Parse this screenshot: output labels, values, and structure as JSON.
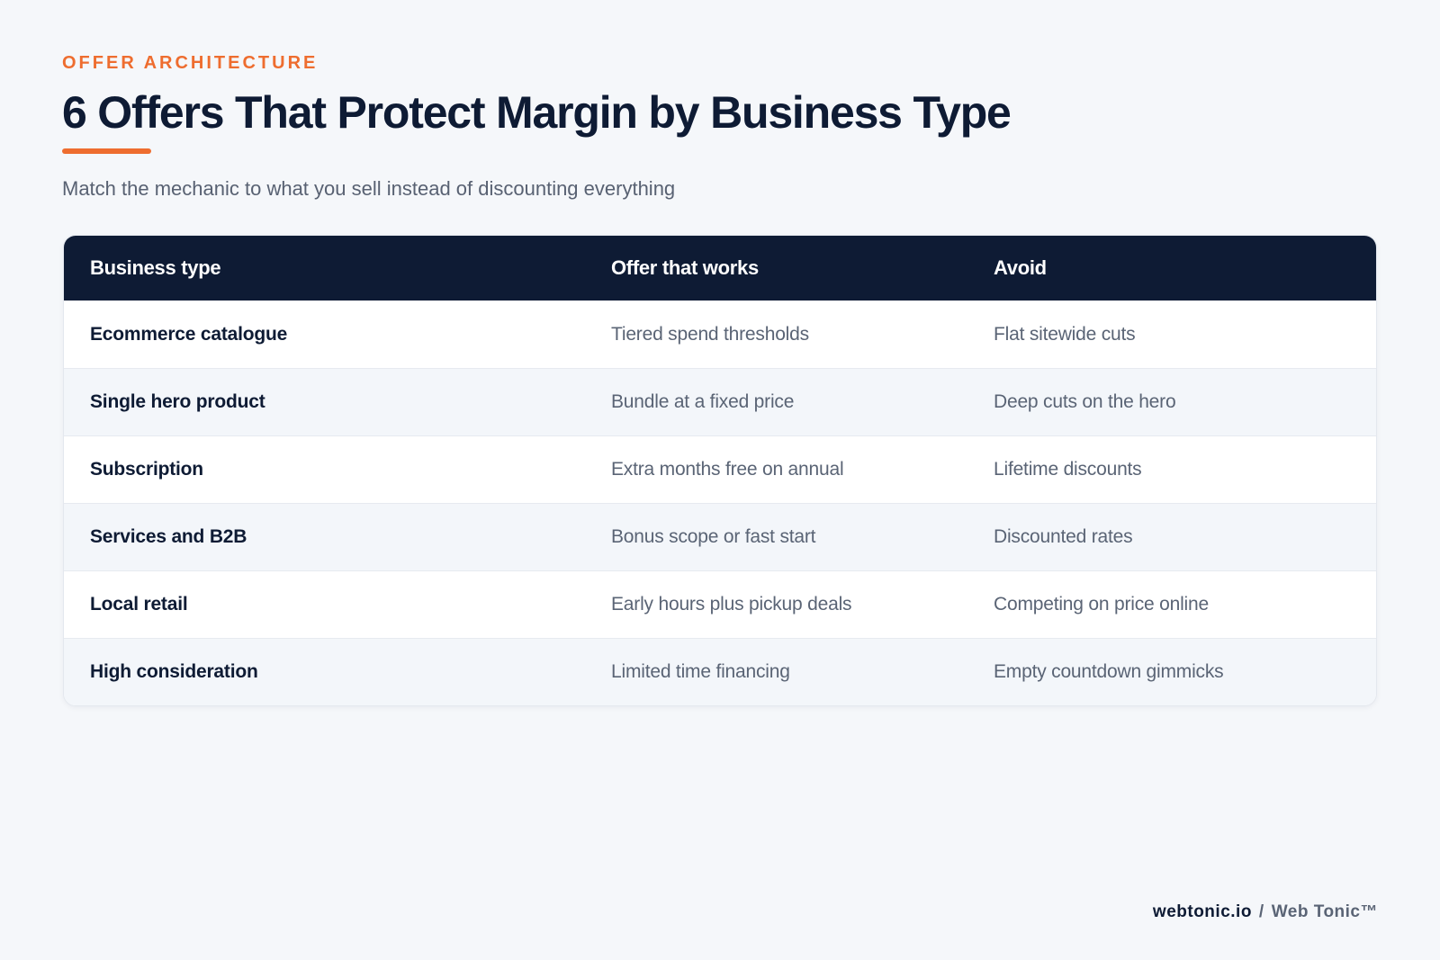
{
  "header": {
    "eyebrow": "OFFER ARCHITECTURE",
    "title": "6 Offers That Protect Margin by Business Type",
    "subtitle": "Match the mechanic to what you sell instead of discounting everything"
  },
  "table": {
    "columns": [
      "Business type",
      "Offer that works",
      "Avoid"
    ],
    "rows": [
      {
        "business_type": "Ecommerce catalogue",
        "offer": "Tiered spend thresholds",
        "avoid": "Flat sitewide cuts"
      },
      {
        "business_type": "Single hero product",
        "offer": "Bundle at a fixed price",
        "avoid": "Deep cuts on the hero"
      },
      {
        "business_type": "Subscription",
        "offer": "Extra months free on annual",
        "avoid": "Lifetime discounts"
      },
      {
        "business_type": "Services and B2B",
        "offer": "Bonus scope or fast start",
        "avoid": "Discounted rates"
      },
      {
        "business_type": "Local retail",
        "offer": "Early hours plus pickup deals",
        "avoid": "Competing on price online"
      },
      {
        "business_type": "High consideration",
        "offer": "Limited time financing",
        "avoid": "Empty countdown gimmicks"
      }
    ]
  },
  "footer": {
    "domain": "webtonic.io",
    "separator": "/",
    "brand": "Web Tonic™"
  },
  "colors": {
    "accent": "#ee6d2f",
    "navy": "#0e1b34",
    "background": "#f5f7fa"
  }
}
